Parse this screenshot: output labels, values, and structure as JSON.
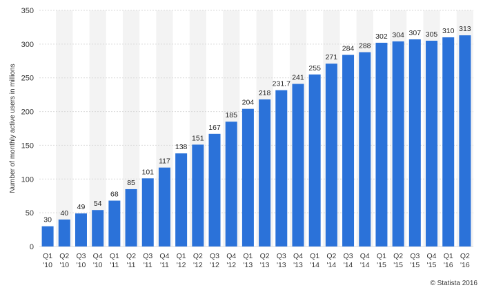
{
  "chart_data": {
    "type": "bar",
    "title": "",
    "xlabel": "",
    "ylabel": "Number of monthly active users in millions",
    "ylim": [
      0,
      350
    ],
    "yticks": [
      0,
      50,
      100,
      150,
      200,
      250,
      300,
      350
    ],
    "grid": true,
    "categories": [
      [
        "Q1",
        "'10"
      ],
      [
        "Q2",
        "'10"
      ],
      [
        "Q3",
        "'10"
      ],
      [
        "Q4",
        "'10"
      ],
      [
        "Q1",
        "'11"
      ],
      [
        "Q2",
        "'11"
      ],
      [
        "Q3",
        "'11"
      ],
      [
        "Q4",
        "'11"
      ],
      [
        "Q1",
        "'12"
      ],
      [
        "Q2",
        "'12"
      ],
      [
        "Q3",
        "'12"
      ],
      [
        "Q4",
        "'12"
      ],
      [
        "Q1",
        "'13"
      ],
      [
        "Q2",
        "'13"
      ],
      [
        "Q3",
        "'13"
      ],
      [
        "Q4",
        "'13"
      ],
      [
        "Q1",
        "'14"
      ],
      [
        "Q2",
        "'14"
      ],
      [
        "Q3",
        "'14"
      ],
      [
        "Q4",
        "'14"
      ],
      [
        "Q1",
        "'15"
      ],
      [
        "Q2",
        "'15"
      ],
      [
        "Q3",
        "'15"
      ],
      [
        "Q4",
        "'15"
      ],
      [
        "Q1",
        "'16"
      ],
      [
        "Q2",
        "'16"
      ]
    ],
    "values": [
      30,
      40,
      49,
      54,
      68,
      85,
      101,
      117,
      138,
      151,
      167,
      185,
      204,
      218,
      231.7,
      241,
      255,
      271,
      284,
      288,
      302,
      304,
      307,
      305,
      310,
      313
    ],
    "value_labels": [
      "30",
      "40",
      "49",
      "54",
      "68",
      "85",
      "101",
      "117",
      "138",
      "151",
      "167",
      "185",
      "204",
      "218",
      "231.7",
      "241",
      "255",
      "271",
      "284",
      "288",
      "302",
      "304",
      "307",
      "305",
      "310",
      "313"
    ],
    "colors": {
      "bar": "#2b72d9",
      "band": "#f3f3f3",
      "grid": "#d9d9d9"
    }
  },
  "credit": "© Statista 2016"
}
